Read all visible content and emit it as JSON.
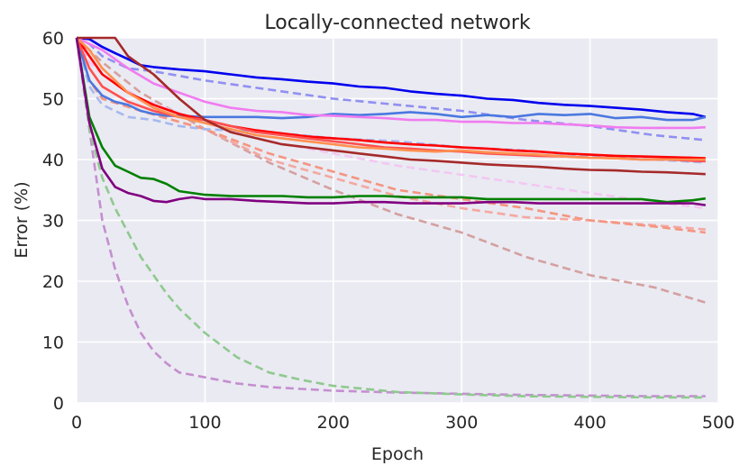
{
  "chart_data": {
    "type": "line",
    "title": "Locally-connected network",
    "xlabel": "Epoch",
    "ylabel": "Error (%)",
    "xlim": [
      0,
      500
    ],
    "ylim": [
      0,
      60
    ],
    "xticks": [
      0,
      100,
      200,
      300,
      400,
      500
    ],
    "yticks": [
      0,
      10,
      20,
      30,
      40,
      50,
      60
    ],
    "grid": true,
    "background_color": "#eaeaf2",
    "grid_color": "#ffffff",
    "series": [
      {
        "style": "dashed",
        "color": "#c48fcf",
        "x": [
          0,
          10,
          20,
          30,
          40,
          50,
          60,
          70,
          80,
          90,
          100,
          125,
          150,
          175,
          200,
          250,
          300,
          350,
          400,
          450,
          490
        ],
        "y": [
          60,
          45,
          30,
          22,
          16,
          11.5,
          8.5,
          6.5,
          5,
          4.6,
          4.2,
          3.2,
          2.6,
          2.3,
          2.0,
          1.7,
          1.5,
          1.3,
          1.2,
          1.1,
          1.1
        ]
      },
      {
        "style": "dashed",
        "color": "#8fc98f",
        "x": [
          0,
          10,
          20,
          30,
          40,
          50,
          60,
          70,
          80,
          90,
          100,
          125,
          150,
          175,
          200,
          250,
          300,
          350,
          400,
          450,
          490
        ],
        "y": [
          60,
          45,
          37,
          32,
          28,
          24,
          21,
          18,
          15.5,
          13.5,
          11.5,
          7.5,
          5,
          3.8,
          2.8,
          1.8,
          1.4,
          1.1,
          1.0,
          0.9,
          0.9
        ]
      },
      {
        "style": "dashed",
        "color": "#d4a0a0",
        "x": [
          0,
          10,
          20,
          50,
          100,
          150,
          200,
          250,
          300,
          350,
          400,
          450,
          490
        ],
        "y": [
          60,
          58,
          56,
          51,
          45,
          39.5,
          35,
          31,
          28,
          24,
          21,
          19,
          16.5
        ]
      },
      {
        "style": "dashed",
        "color": "#f4a8a0",
        "x": [
          0,
          10,
          20,
          50,
          100,
          150,
          200,
          250,
          300,
          350,
          400,
          450,
          490
        ],
        "y": [
          60,
          53,
          50,
          48,
          45,
          40,
          37,
          34,
          32,
          30.5,
          30,
          29.2,
          28.5
        ]
      },
      {
        "style": "dashed",
        "color": "#f49580",
        "x": [
          0,
          10,
          20,
          50,
          100,
          150,
          200,
          250,
          300,
          350,
          400,
          450,
          490
        ],
        "y": [
          60,
          53,
          50,
          48,
          45,
          41,
          38,
          35,
          33.5,
          32,
          30,
          29,
          28
        ]
      },
      {
        "style": "dashed",
        "color": "#f2c8f2",
        "x": [
          0,
          10,
          20,
          50,
          100,
          150,
          200,
          250,
          300,
          350,
          400,
          450,
          490
        ],
        "y": [
          60,
          56,
          54,
          50,
          46,
          43,
          41,
          39,
          37.5,
          36,
          34.5,
          33,
          32
        ]
      },
      {
        "style": "dashed",
        "color": "#a8b8ee",
        "x": [
          0,
          10,
          20,
          40,
          60,
          80,
          100,
          150,
          200,
          250,
          300,
          350,
          400,
          450,
          490
        ],
        "y": [
          60,
          52,
          49,
          47,
          46.5,
          45.5,
          45,
          44.5,
          43.5,
          43,
          42,
          41.5,
          40.5,
          40,
          39.5
        ]
      },
      {
        "style": "dashed",
        "color": "#9090f2",
        "x": [
          0,
          10,
          20,
          40,
          60,
          100,
          150,
          200,
          250,
          300,
          350,
          400,
          450,
          490
        ],
        "y": [
          60,
          59,
          57,
          55,
          54.5,
          53,
          51.5,
          50,
          49,
          48,
          46.5,
          45.5,
          44,
          43.2
        ]
      },
      {
        "style": "solid",
        "color": "#0000ee",
        "x": [
          0,
          10,
          20,
          30,
          40,
          50,
          60,
          80,
          100,
          120,
          140,
          160,
          180,
          200,
          220,
          240,
          260,
          280,
          300,
          320,
          340,
          360,
          380,
          400,
          420,
          440,
          460,
          480,
          490
        ],
        "y": [
          60,
          59.8,
          58.5,
          57.5,
          56.5,
          55.5,
          55.2,
          54.8,
          54.5,
          54,
          53.5,
          53.2,
          52.8,
          52.5,
          52,
          51.8,
          51.2,
          50.8,
          50.5,
          50,
          49.8,
          49.3,
          49,
          48.8,
          48.5,
          48.2,
          47.8,
          47.5,
          47
        ]
      },
      {
        "style": "solid",
        "color": "#4a78e0",
        "x": [
          0,
          10,
          20,
          30,
          40,
          50,
          60,
          70,
          80,
          100,
          120,
          140,
          160,
          180,
          200,
          220,
          240,
          260,
          280,
          300,
          320,
          340,
          360,
          380,
          400,
          420,
          440,
          460,
          480,
          490
        ],
        "y": [
          60,
          53,
          50.5,
          49.5,
          49,
          48,
          47.5,
          47.2,
          47.2,
          47,
          47,
          47,
          46.8,
          47,
          47.5,
          47.3,
          47.5,
          47.8,
          47.5,
          47,
          47.3,
          47,
          47.5,
          47.3,
          47.5,
          46.8,
          47,
          46.5,
          46.5,
          47
        ]
      },
      {
        "style": "solid",
        "color": "#f07cf0",
        "x": [
          0,
          20,
          40,
          60,
          80,
          100,
          120,
          140,
          160,
          180,
          200,
          220,
          240,
          260,
          280,
          300,
          320,
          340,
          360,
          380,
          400,
          420,
          440,
          460,
          480,
          490
        ],
        "y": [
          60,
          58,
          55,
          52.5,
          51,
          49.5,
          48.5,
          48,
          47.8,
          47.3,
          47.2,
          47,
          46.8,
          46.5,
          46.5,
          46.2,
          46.2,
          46,
          46,
          45.8,
          45.6,
          45.3,
          45.2,
          45.2,
          45.2,
          45.3
        ]
      },
      {
        "style": "solid",
        "color": "#ff0000",
        "x": [
          0,
          10,
          20,
          40,
          60,
          80,
          100,
          120,
          140,
          160,
          180,
          200,
          220,
          240,
          260,
          280,
          300,
          320,
          340,
          360,
          380,
          400,
          420,
          440,
          460,
          480,
          490
        ],
        "y": [
          60,
          57,
          54,
          51,
          49,
          47.5,
          46.5,
          45.5,
          44.8,
          44.3,
          43.8,
          43.5,
          43.2,
          42.8,
          42.5,
          42.3,
          42,
          41.8,
          41.5,
          41.3,
          41,
          40.8,
          40.6,
          40.5,
          40.4,
          40.3,
          40.2
        ]
      },
      {
        "style": "solid",
        "color": "#ff5050",
        "x": [
          0,
          10,
          20,
          40,
          60,
          80,
          100,
          120,
          140,
          160,
          180,
          200,
          220,
          240,
          260,
          280,
          300,
          320,
          340,
          360,
          380,
          400,
          420,
          440,
          460,
          480,
          490
        ],
        "y": [
          60,
          55,
          52,
          49.5,
          48,
          47,
          46.5,
          45.5,
          44.5,
          44,
          43.5,
          43,
          42.5,
          42,
          41.8,
          41.5,
          41.3,
          41,
          40.8,
          40.6,
          40.5,
          40.3,
          40.2,
          40,
          40,
          39.8,
          39.7
        ]
      },
      {
        "style": "solid",
        "color": "#ff9050",
        "x": [
          0,
          10,
          20,
          40,
          60,
          80,
          100,
          120,
          140,
          160,
          180,
          200,
          220,
          240,
          260,
          280,
          300,
          320,
          340,
          360,
          380,
          400,
          420,
          440,
          460,
          480,
          490
        ],
        "y": [
          60,
          58,
          55,
          51,
          48.5,
          47,
          46,
          45,
          44,
          43.5,
          43,
          42.5,
          42,
          41.8,
          41.5,
          41.3,
          41.5,
          41.2,
          41,
          40.8,
          40.5,
          40.3,
          40.2,
          40,
          40,
          40,
          40
        ]
      },
      {
        "style": "solid",
        "color": "#a52a2a",
        "x": [
          0,
          10,
          20,
          30,
          40,
          60,
          80,
          100,
          120,
          140,
          160,
          180,
          200,
          220,
          240,
          260,
          280,
          300,
          320,
          340,
          360,
          380,
          400,
          420,
          440,
          460,
          480,
          490
        ],
        "y": [
          60,
          60,
          60,
          60,
          57,
          54,
          50,
          46.5,
          44.5,
          43.5,
          42.5,
          42,
          41.5,
          41,
          40.5,
          40,
          39.8,
          39.5,
          39.2,
          39,
          38.8,
          38.5,
          38.3,
          38.2,
          38,
          37.9,
          37.7,
          37.6
        ]
      },
      {
        "style": "solid",
        "color": "#008000",
        "x": [
          0,
          10,
          20,
          30,
          40,
          50,
          60,
          70,
          80,
          90,
          100,
          120,
          140,
          160,
          180,
          200,
          220,
          240,
          260,
          280,
          300,
          320,
          340,
          360,
          380,
          400,
          420,
          440,
          460,
          480,
          490
        ],
        "y": [
          60,
          47,
          42,
          39,
          38,
          37,
          36.8,
          36,
          34.8,
          34.5,
          34.2,
          34,
          34,
          34,
          33.8,
          33.8,
          34,
          34,
          33.8,
          33.8,
          33.8,
          33.5,
          33.5,
          33.5,
          33.5,
          33.5,
          33.5,
          33.5,
          33,
          33.3,
          33.6
        ]
      },
      {
        "style": "solid",
        "color": "#800080",
        "x": [
          0,
          10,
          20,
          30,
          40,
          50,
          60,
          70,
          80,
          90,
          100,
          120,
          140,
          160,
          180,
          200,
          220,
          240,
          260,
          280,
          300,
          320,
          340,
          360,
          380,
          400,
          420,
          440,
          460,
          480,
          490
        ],
        "y": [
          60,
          46,
          38.5,
          35.5,
          34.5,
          34,
          33.2,
          33,
          33.5,
          33.8,
          33.5,
          33.5,
          33.2,
          33,
          32.8,
          32.8,
          33,
          33,
          32.8,
          32.8,
          32.8,
          33,
          33,
          32.8,
          32.8,
          32.8,
          32.8,
          32.8,
          32.8,
          32.8,
          32.5
        ]
      }
    ]
  }
}
